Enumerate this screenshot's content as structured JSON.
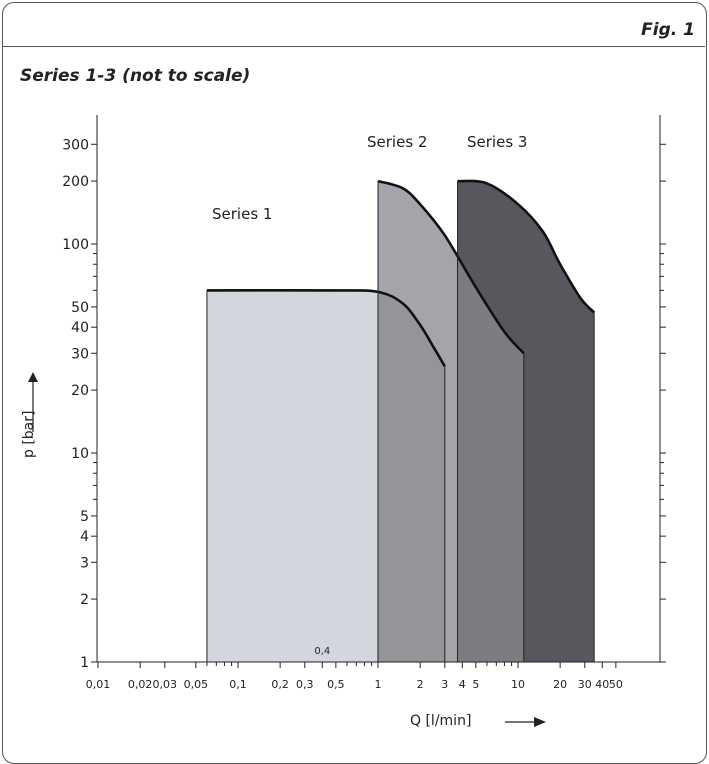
{
  "figure_label": "Fig. 1",
  "subtitle": "Series 1-3 (not to scale)",
  "chart_data": {
    "type": "area",
    "title": "Series 1-3 (not to scale)",
    "xlabel": "Q [l/min]",
    "ylabel": "p [bar]",
    "x_scale": "log",
    "y_scale": "log",
    "xlim": [
      0.01,
      50
    ],
    "ylim": [
      1,
      300
    ],
    "grid": false,
    "x_tick_labels": [
      {
        "v": 0.01,
        "t": "0,01"
      },
      {
        "v": 0.02,
        "t": "0,02"
      },
      {
        "v": 0.03,
        "t": "0,03"
      },
      {
        "v": 0.05,
        "t": "0,05"
      },
      {
        "v": 0.1,
        "t": "0,1"
      },
      {
        "v": 0.2,
        "t": "0,2"
      },
      {
        "v": 0.3,
        "t": "0,3"
      },
      {
        "v": 0.4,
        "t": "0,4"
      },
      {
        "v": 0.5,
        "t": "0,5"
      },
      {
        "v": 1,
        "t": "1"
      },
      {
        "v": 2,
        "t": "2"
      },
      {
        "v": 3,
        "t": "3"
      },
      {
        "v": 4,
        "t": "4"
      },
      {
        "v": 5,
        "t": "5"
      },
      {
        "v": 10,
        "t": "10"
      },
      {
        "v": 20,
        "t": "20"
      },
      {
        "v": 30,
        "t": "30"
      },
      {
        "v": 40,
        "t": "40"
      },
      {
        "v": 50,
        "t": "50"
      }
    ],
    "y_tick_labels": [
      {
        "v": 1,
        "t": "1"
      },
      {
        "v": 2,
        "t": "2"
      },
      {
        "v": 3,
        "t": "3"
      },
      {
        "v": 4,
        "t": "4"
      },
      {
        "v": 5,
        "t": "5"
      },
      {
        "v": 10,
        "t": "10"
      },
      {
        "v": 20,
        "t": "20"
      },
      {
        "v": 30,
        "t": "30"
      },
      {
        "v": 40,
        "t": "40"
      },
      {
        "v": 50,
        "t": "50"
      },
      {
        "v": 100,
        "t": "100"
      },
      {
        "v": 200,
        "t": "200"
      },
      {
        "v": 300,
        "t": "300"
      }
    ],
    "series": [
      {
        "name": "Series 1",
        "color": "#d3d6dc",
        "x_range": [
          0.06,
          3
        ],
        "boundary": [
          {
            "x": 0.06,
            "p": 60
          },
          {
            "x": 0.5,
            "p": 60
          },
          {
            "x": 1,
            "p": 59
          },
          {
            "x": 1.5,
            "p": 52
          },
          {
            "x": 2,
            "p": 41
          },
          {
            "x": 2.5,
            "p": 32
          },
          {
            "x": 3,
            "p": 26
          }
        ]
      },
      {
        "name": "Series 2",
        "color": "#a3a5aa",
        "x_range": [
          1,
          11
        ],
        "boundary": [
          {
            "x": 1,
            "p": 200
          },
          {
            "x": 1.5,
            "p": 185
          },
          {
            "x": 2,
            "p": 155
          },
          {
            "x": 3,
            "p": 110
          },
          {
            "x": 5,
            "p": 62
          },
          {
            "x": 8,
            "p": 38
          },
          {
            "x": 11,
            "p": 30
          }
        ]
      },
      {
        "name": "Series 3",
        "color": "#56585d",
        "x_range": [
          3.7,
          35
        ],
        "boundary": [
          {
            "x": 3.7,
            "p": 200
          },
          {
            "x": 6,
            "p": 195
          },
          {
            "x": 10,
            "p": 155
          },
          {
            "x": 15,
            "p": 115
          },
          {
            "x": 20,
            "p": 80
          },
          {
            "x": 28,
            "p": 55
          },
          {
            "x": 35,
            "p": 47
          }
        ]
      }
    ],
    "overlap_colors": {
      "s1_s2": "#939599",
      "s2_s3": "#7b7d82"
    }
  }
}
